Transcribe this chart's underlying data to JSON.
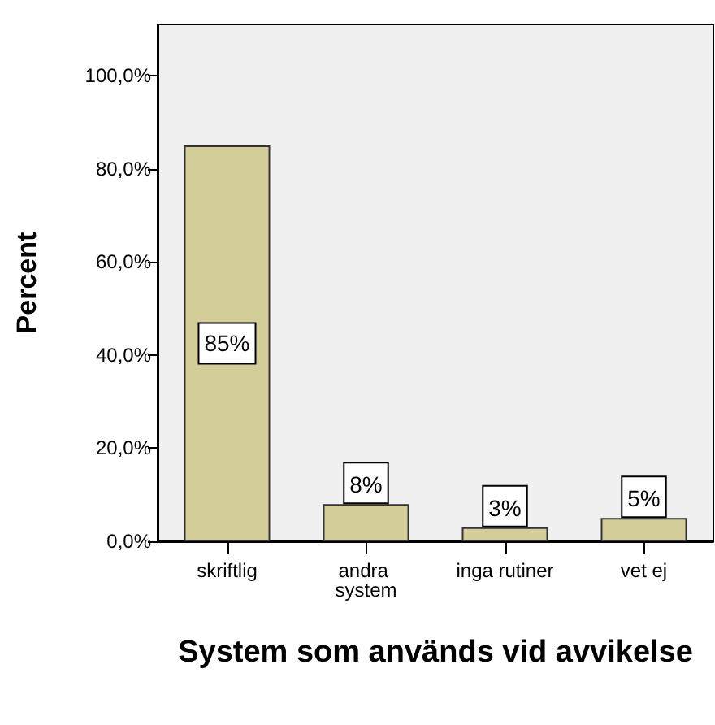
{
  "chart_data": {
    "type": "bar",
    "xlabel": "System som används vid avvikelse",
    "ylabel": "Percent",
    "categories": [
      "skriftlig",
      "andra system",
      "inga rutiner",
      "vet ej"
    ],
    "values": [
      85,
      8,
      3,
      5
    ],
    "value_labels": [
      "85%",
      "8%",
      "3%",
      "5%"
    ],
    "color": "#d3ce97",
    "ylim": [
      0,
      111
    ],
    "yticks": [
      {
        "value": 0,
        "label": "0,0%"
      },
      {
        "value": 20,
        "label": "20,0%"
      },
      {
        "value": 40,
        "label": "40,0%"
      },
      {
        "value": 60,
        "label": "60,0%"
      },
      {
        "value": 80,
        "label": "80,0%"
      },
      {
        "value": 100,
        "label": "100,0%"
      }
    ],
    "grid": false
  }
}
